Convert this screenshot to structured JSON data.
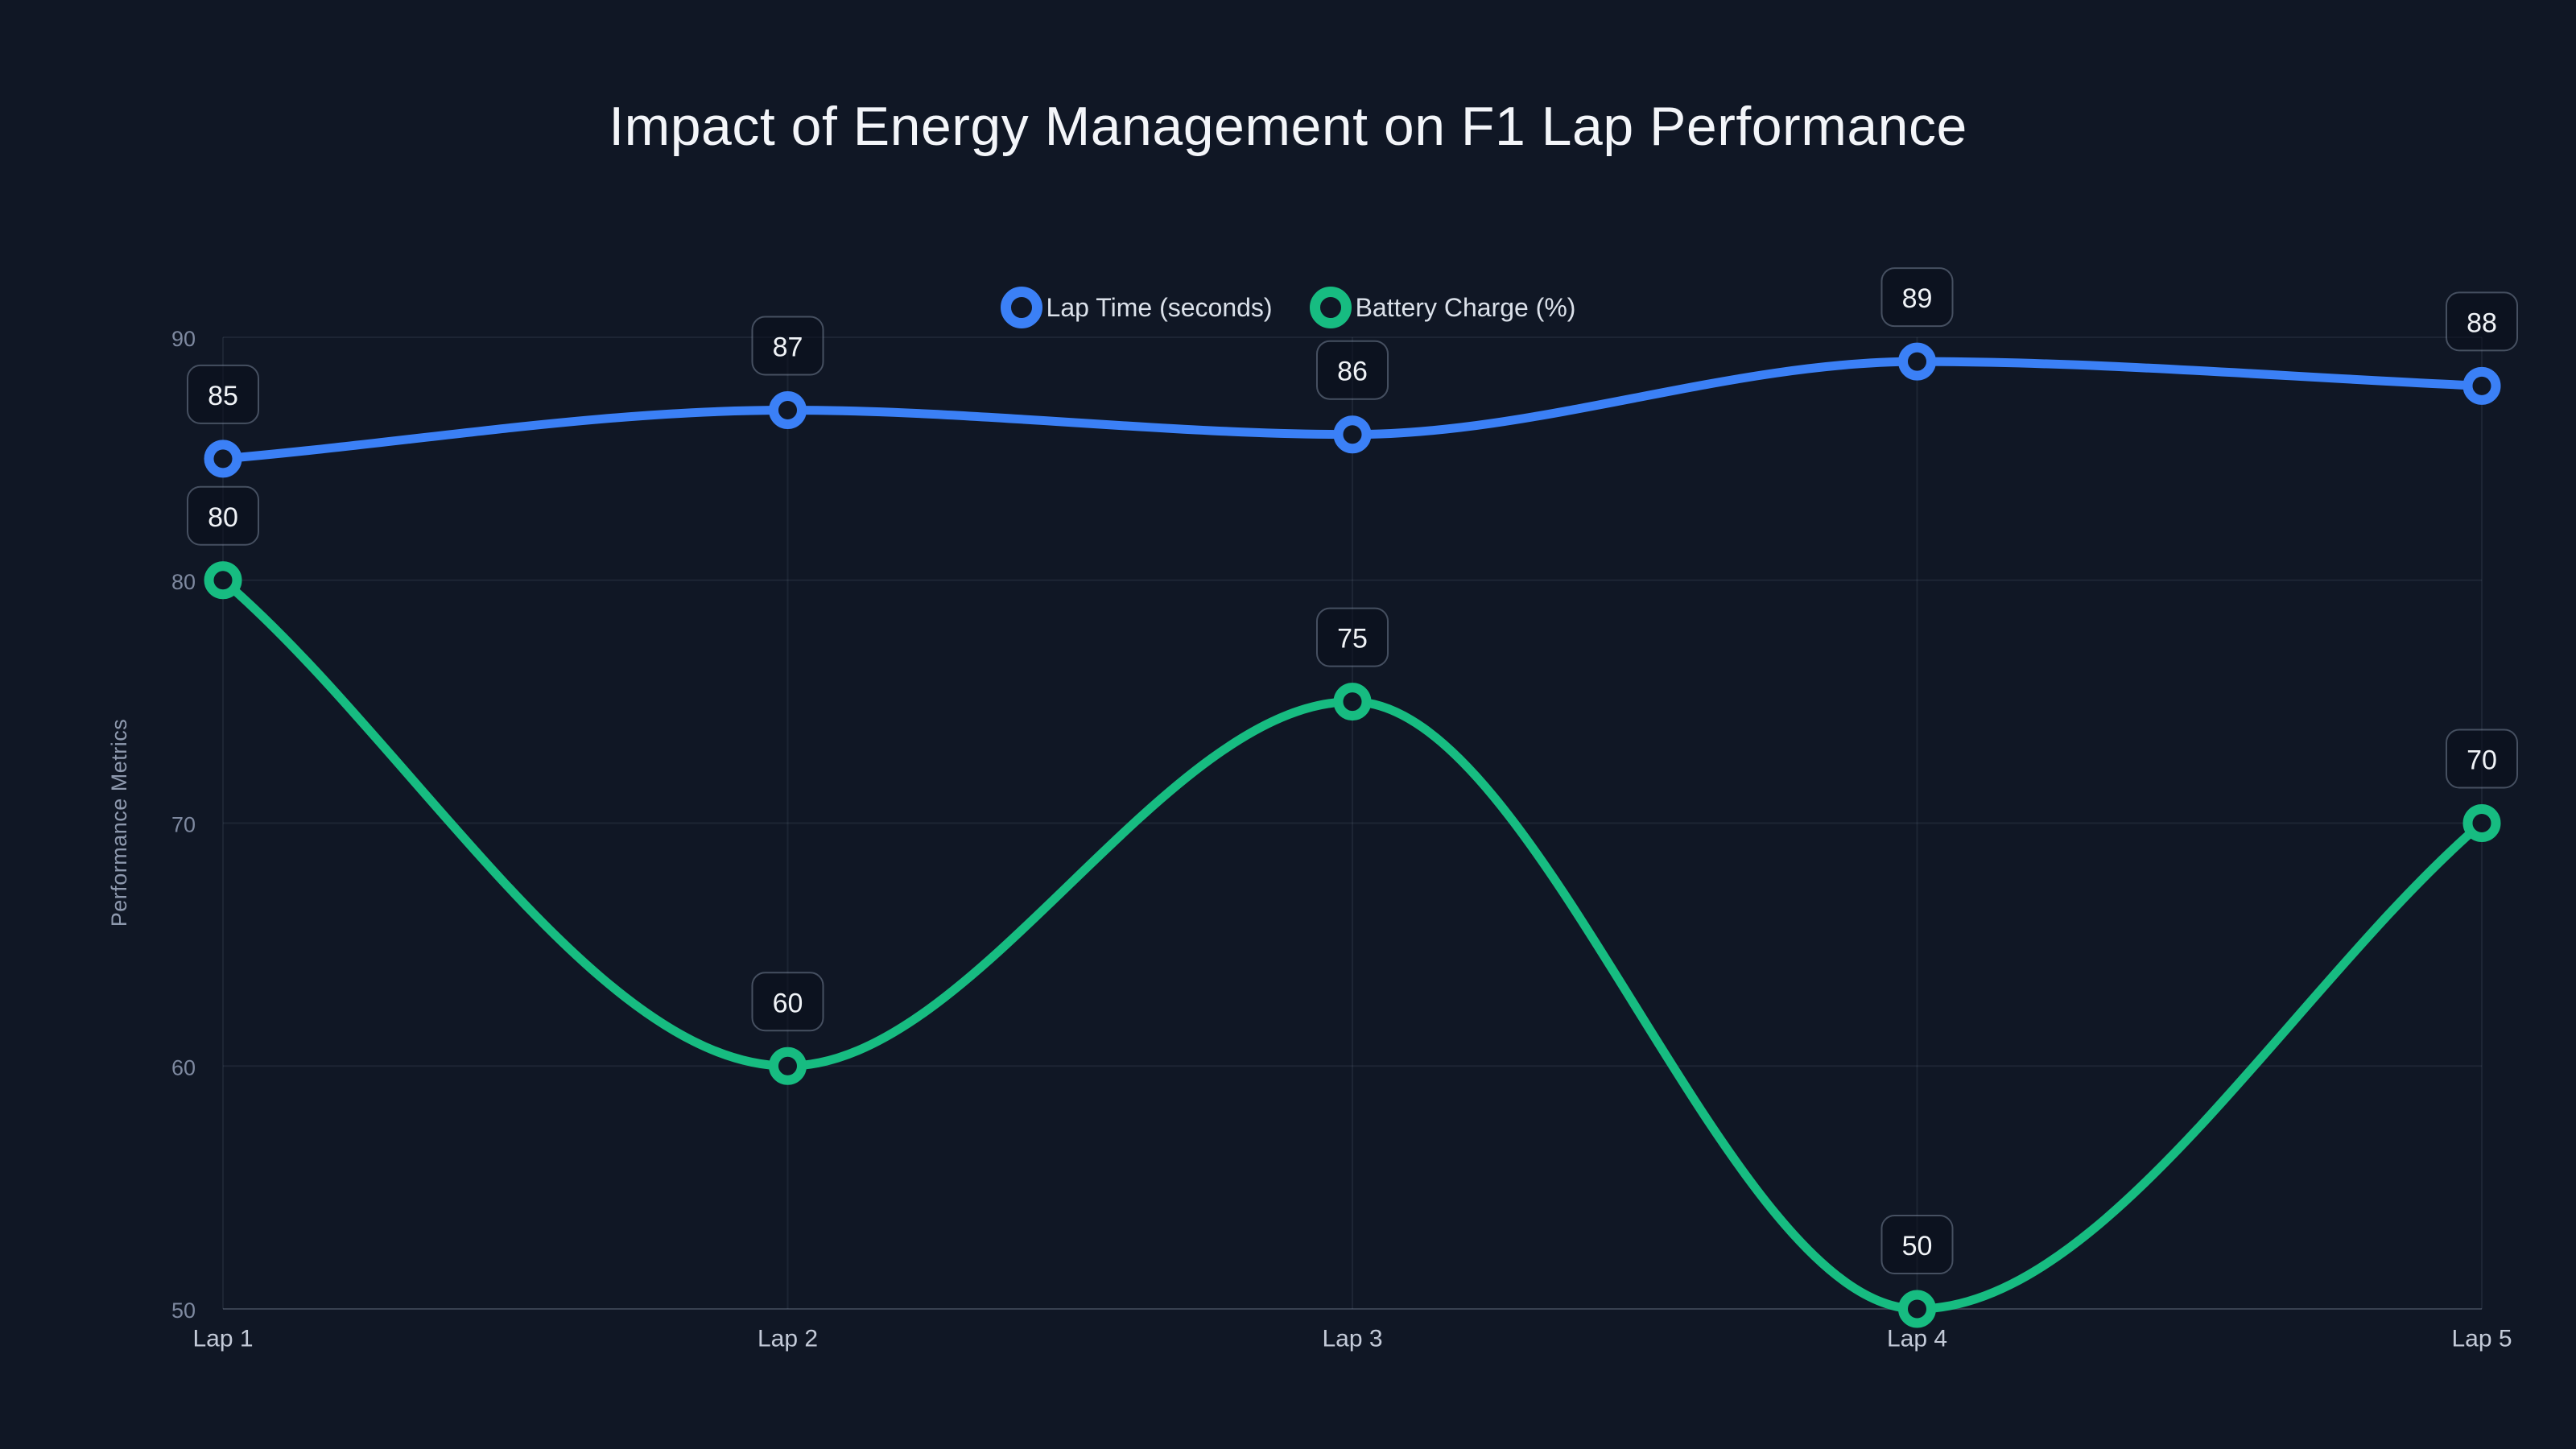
{
  "chart_data": {
    "type": "line",
    "title": "Impact of Energy Management on F1 Lap Performance",
    "categories": [
      "Lap 1",
      "Lap 2",
      "Lap 3",
      "Lap 4",
      "Lap 5"
    ],
    "series": [
      {
        "name": "Lap Time (seconds)",
        "color": "#3b80f6",
        "values": [
          85,
          87,
          86,
          89,
          88
        ]
      },
      {
        "name": "Battery Charge (%)",
        "color": "#17bc81",
        "values": [
          80,
          60,
          75,
          50,
          70
        ]
      }
    ],
    "xlabel": "",
    "ylabel": "Performance Metrics",
    "ylim": [
      50,
      90
    ],
    "yticks": [
      50,
      60,
      70,
      80,
      90
    ],
    "grid": true,
    "legend_position": "top",
    "point_labels_visible": true,
    "curve": "smooth-monotone"
  },
  "colors": {
    "background": "#101725",
    "title": "#f3f5f9",
    "legend_text": "#dbe1ea",
    "grid": "rgba(148,163,184,0.10)",
    "axis": "rgba(148,163,184,0.30)",
    "y_tick": "#7e89a0",
    "x_tick": "#c3cad8",
    "axis_title": "#8e99ae",
    "label_box_fill": "rgba(9,14,27,0.55)",
    "label_box_border": "rgba(148,163,184,0.42)",
    "label_text": "#f0f3f7"
  }
}
